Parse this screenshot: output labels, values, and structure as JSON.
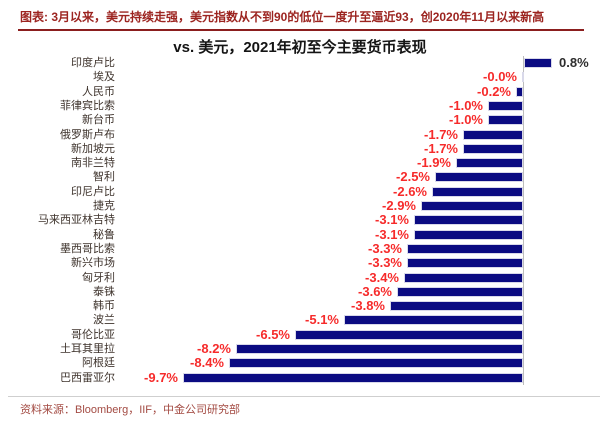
{
  "page": {
    "caption": "图表: 3月以来，美元持续走强，美元指数从不到90的低位一度升至逼近93，创2020年11月以来新高",
    "source": "资料来源：Bloomberg，IIF，中金公司研究部"
  },
  "colors": {
    "caption_red": "#9C2420",
    "caption_rule_red": "#8B1E1E",
    "bar_navy": "#0B0B82",
    "negative_value_red": "#F62B2B",
    "positive_value_dark": "#2E2E2E",
    "baseline_gray": "#BDBDBD",
    "source_red": "#A34B43"
  },
  "chart_data": {
    "type": "bar",
    "orientation": "horizontal",
    "title": "vs. 美元，2021年初至今主要货币表现",
    "xlabel": "",
    "ylabel": "",
    "unit": "%",
    "xlim": [
      -10,
      1
    ],
    "grid": false,
    "legend": false,
    "axis_tick_labels_visible": false,
    "categories": [
      "印度卢比",
      "埃及",
      "人民币",
      "菲律宾比索",
      "新台币",
      "俄罗斯卢布",
      "新加坡元",
      "南非兰特",
      "智利",
      "印尼卢比",
      "捷克",
      "马来西亚林吉特",
      "秘鲁",
      "墨西哥比索",
      "新兴市场",
      "匈牙利",
      "泰铢",
      "韩币",
      "波兰",
      "哥伦比亚",
      "土耳其里拉",
      "阿根廷",
      "巴西雷亚尔"
    ],
    "values": [
      0.8,
      -0.0,
      -0.2,
      -1.0,
      -1.0,
      -1.7,
      -1.7,
      -1.9,
      -2.5,
      -2.6,
      -2.9,
      -3.1,
      -3.1,
      -3.3,
      -3.3,
      -3.4,
      -3.6,
      -3.8,
      -5.1,
      -6.5,
      -8.2,
      -8.4,
      -9.7
    ],
    "value_labels": [
      "0.8%",
      "-0.0%",
      "-0.2%",
      "-1.0%",
      "-1.0%",
      "-1.7%",
      "-1.7%",
      "-1.9%",
      "-2.5%",
      "-2.6%",
      "-2.9%",
      "-3.1%",
      "-3.1%",
      "-3.3%",
      "-3.3%",
      "-3.4%",
      "-3.6%",
      "-3.8%",
      "-5.1%",
      "-6.5%",
      "-8.2%",
      "-8.4%",
      "-9.7%"
    ]
  }
}
